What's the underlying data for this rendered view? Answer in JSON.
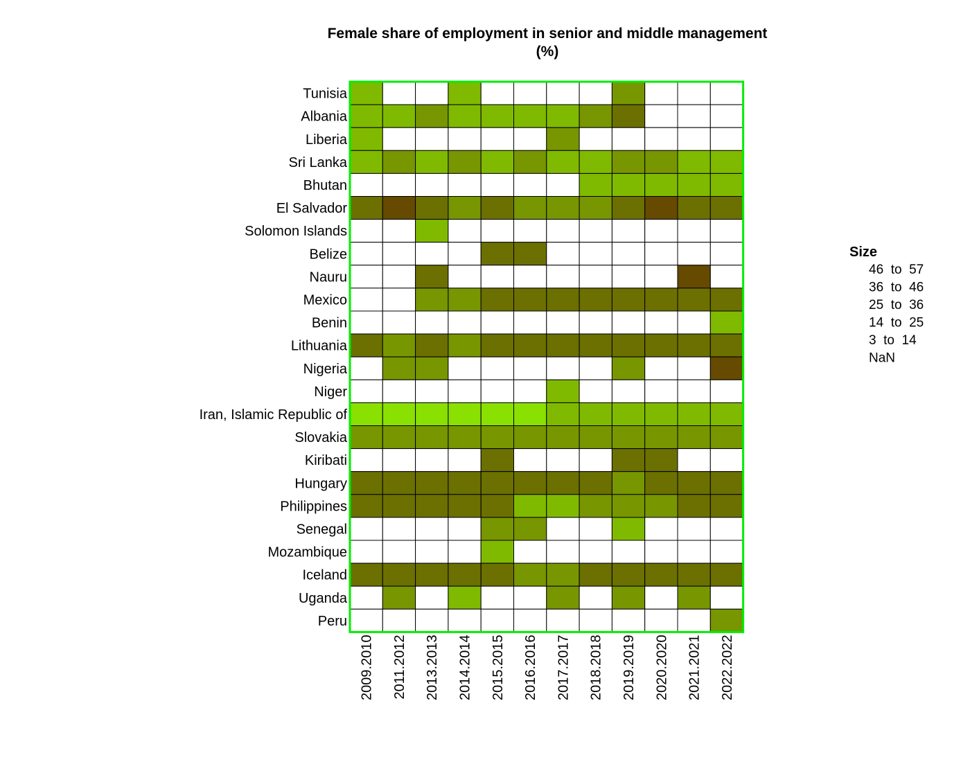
{
  "chart_data": {
    "type": "heatmap",
    "title": "Female share of employment in senior and middle management",
    "subtitle": "(%)",
    "xlabel": "",
    "ylabel": "",
    "x_categories": [
      "2009.2010",
      "2011.2012",
      "2013.2013",
      "2014.2014",
      "2015.2015",
      "2016.2016",
      "2017.2017",
      "2018.2018",
      "2019.2019",
      "2020.2020",
      "2021.2021",
      "2022.2022"
    ],
    "y_categories": [
      "Tunisia",
      "Albania",
      "Liberia",
      "Sri Lanka",
      "Bhutan",
      "El Salvador",
      "Solomon Islands",
      "Belize",
      "Nauru",
      "Mexico",
      "Benin",
      "Lithuania",
      "Nigeria",
      "Niger",
      "Iran, Islamic Republic of",
      "Slovakia",
      "Kiribati",
      "Hungary",
      "Philippines",
      "Senegal",
      "Mozambique",
      "Iceland",
      "Uganda",
      "Peru"
    ],
    "bins": [
      {
        "label": "46  to  57",
        "min": 46,
        "max": 57,
        "color": "#654a00"
      },
      {
        "label": "36  to  46",
        "min": 36,
        "max": 46,
        "color": "#6b7000"
      },
      {
        "label": "25  to  36",
        "min": 25,
        "max": 36,
        "color": "#789600"
      },
      {
        "label": "14  to  25",
        "min": 14,
        "max": 25,
        "color": "#80ba00"
      },
      {
        "label": "3  to  14",
        "min": 3,
        "max": 14,
        "color": "#8ae000"
      },
      {
        "label": "NaN",
        "min": null,
        "max": null,
        "color": "#ffffff"
      }
    ],
    "legend_title": "Size",
    "legend_position": "right",
    "grid": true,
    "frame_color": "#00ee00",
    "values": [
      [
        16,
        null,
        null,
        16,
        null,
        null,
        null,
        null,
        28,
        null,
        null,
        null
      ],
      [
        18,
        22,
        30,
        20,
        20,
        22,
        23,
        30,
        38,
        null,
        null,
        null
      ],
      [
        18,
        null,
        null,
        null,
        null,
        null,
        30,
        null,
        null,
        null,
        null,
        null
      ],
      [
        20,
        28,
        24,
        25,
        24,
        28,
        22,
        24,
        28,
        30,
        22,
        24
      ],
      [
        null,
        null,
        null,
        null,
        null,
        null,
        null,
        18,
        20,
        19,
        20,
        20
      ],
      [
        38,
        50,
        38,
        32,
        38,
        32,
        33,
        31,
        38,
        48,
        38,
        40
      ],
      [
        null,
        null,
        20,
        null,
        null,
        null,
        null,
        null,
        null,
        null,
        null,
        null
      ],
      [
        null,
        null,
        null,
        null,
        40,
        40,
        null,
        null,
        null,
        null,
        null,
        null
      ],
      [
        null,
        null,
        40,
        null,
        null,
        null,
        null,
        null,
        null,
        null,
        50,
        null
      ],
      [
        null,
        null,
        33,
        33,
        39,
        39,
        39,
        39,
        39,
        39,
        38,
        39
      ],
      [
        null,
        null,
        null,
        null,
        null,
        null,
        null,
        null,
        null,
        null,
        null,
        20
      ],
      [
        38,
        32,
        38,
        34,
        39,
        39,
        39,
        39,
        39,
        39,
        38,
        40
      ],
      [
        null,
        32,
        32,
        null,
        null,
        null,
        null,
        null,
        32,
        null,
        null,
        50
      ],
      [
        null,
        null,
        null,
        null,
        null,
        null,
        18,
        null,
        null,
        null,
        null,
        null
      ],
      [
        10,
        10,
        10,
        10,
        10,
        10,
        20,
        20,
        20,
        20,
        20,
        20
      ],
      [
        30,
        30,
        30,
        30,
        30,
        30,
        30,
        30,
        30,
        30,
        30,
        30
      ],
      [
        null,
        null,
        null,
        null,
        40,
        null,
        null,
        null,
        40,
        40,
        null,
        null
      ],
      [
        40,
        40,
        40,
        40,
        40,
        40,
        40,
        40,
        32,
        40,
        40,
        40
      ],
      [
        40,
        40,
        40,
        40,
        40,
        20,
        20,
        28,
        30,
        30,
        38,
        38
      ],
      [
        null,
        null,
        null,
        null,
        30,
        30,
        null,
        null,
        20,
        null,
        null,
        null
      ],
      [
        null,
        null,
        null,
        null,
        20,
        null,
        null,
        null,
        null,
        null,
        null,
        null
      ],
      [
        40,
        40,
        40,
        40,
        40,
        32,
        32,
        40,
        40,
        40,
        40,
        40
      ],
      [
        null,
        32,
        null,
        20,
        null,
        null,
        32,
        null,
        32,
        null,
        32,
        null
      ],
      [
        null,
        null,
        null,
        null,
        null,
        null,
        null,
        null,
        null,
        null,
        null,
        30
      ]
    ]
  }
}
